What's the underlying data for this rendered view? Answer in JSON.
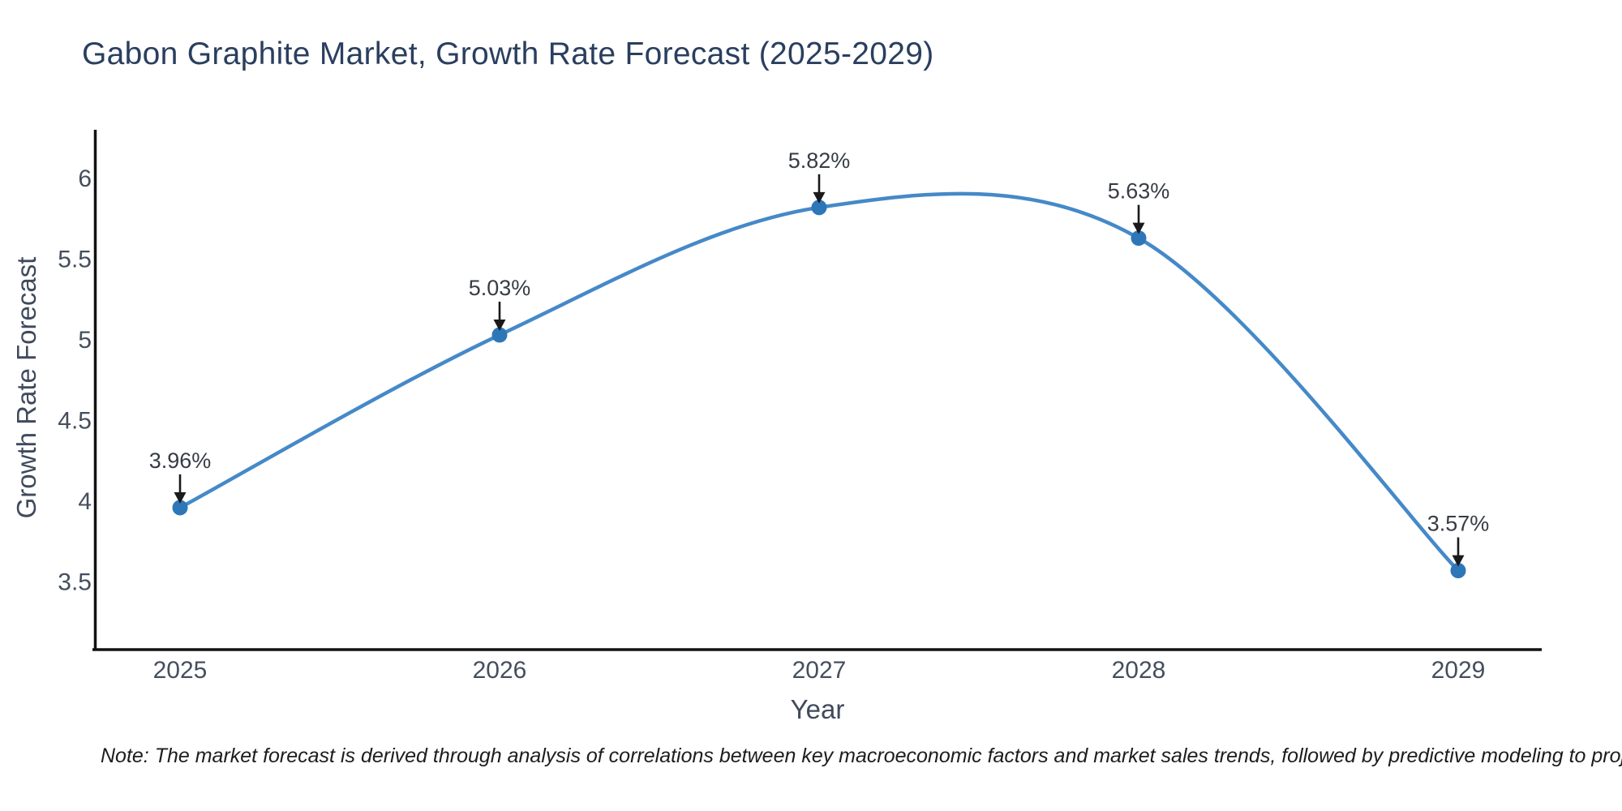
{
  "chart_data": {
    "type": "line",
    "title": "Gabon Graphite Market, Growth Rate Forecast (2025-2029)",
    "xlabel": "Year",
    "ylabel": "Growth Rate Forecast",
    "categories": [
      2025,
      2026,
      2027,
      2028,
      2029
    ],
    "values": [
      3.96,
      5.03,
      5.82,
      5.63,
      3.57
    ],
    "point_labels": [
      "3.96%",
      "5.03%",
      "5.82%",
      "5.63%",
      "3.57%"
    ],
    "y_tick_labels": [
      "3.5",
      "4",
      "4.5",
      "5",
      "5.5",
      "6"
    ],
    "ylim": [
      3.1,
      6.35
    ],
    "line_shape": "spline",
    "grid": false,
    "legend_position": "none",
    "colors": {
      "line": "#4589c8",
      "marker": "#2d77b9",
      "axis": "#111111",
      "arrow": "#1a1a1a",
      "title_text": "#2a3f5f",
      "axis_title_text": "#3f4a5c",
      "tick_text": "#454e5e",
      "annotation_text": "#373c44"
    },
    "note": "Note: The market forecast is derived through analysis of correlations between key macroeconomic factors and market sales trends, followed by predictive modeling to project future sales"
  }
}
